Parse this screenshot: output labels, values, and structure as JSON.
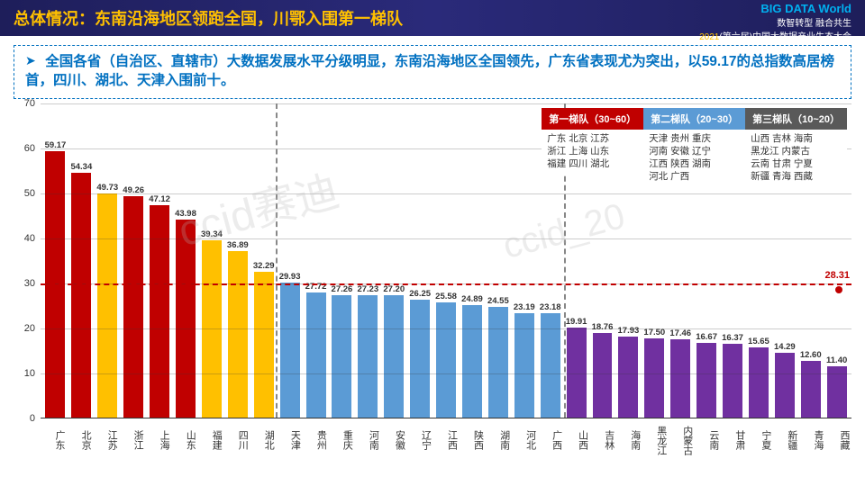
{
  "header": {
    "title": "总体情况：东南沿海地区领跑全国，川鄂入围第一梯队",
    "logo_main": "BIG DATA World",
    "logo_sub": "中国大数据产业生态大会",
    "slogan": "数智转型 融合共生",
    "event": "2021(第六届)中国大数据产业生态大会",
    "year": "2021"
  },
  "description": "全国各省（自治区、直辖市）大数据发展水平分级明显，东南沿海地区全国领先，广东省表现尤为突出，以59.17的总指数高居榜首，四川、湖北、天津入围前十。",
  "chart": {
    "type": "bar",
    "ylim": [
      0,
      70
    ],
    "ytick_step": 10,
    "ref_line": 30,
    "final_point": {
      "label": "28.31",
      "value": 28.31
    },
    "tiers": [
      {
        "name": "第一梯队（30~60）",
        "color": "#c00000",
        "items": [
          "广东 北京 江苏",
          "浙江 上海 山东",
          "福建 四川 湖北"
        ]
      },
      {
        "name": "第二梯队（20~30）",
        "color": "#5b9bd5",
        "items": [
          "天津 贵州 重庆",
          "河南 安徽 辽宁",
          "江西 陕西 湖南",
          "河北 广西"
        ]
      },
      {
        "name": "第三梯队（10~20）",
        "color": "#595959",
        "items": [
          "山西 吉林 海南",
          "黑龙江 内蒙古",
          "云南 甘肃 宁夏",
          "新疆 青海 西藏"
        ]
      }
    ],
    "tier_boundaries": [
      9,
      20
    ],
    "bars": [
      {
        "label": "广东",
        "value": 59.17,
        "color": "#c00000"
      },
      {
        "label": "北京",
        "value": 54.34,
        "color": "#c00000"
      },
      {
        "label": "江苏",
        "value": 49.73,
        "color": "#ffc000"
      },
      {
        "label": "浙江",
        "value": 49.26,
        "color": "#c00000"
      },
      {
        "label": "上海",
        "value": 47.12,
        "color": "#c00000"
      },
      {
        "label": "山东",
        "value": 43.98,
        "color": "#c00000"
      },
      {
        "label": "福建",
        "value": 39.34,
        "color": "#ffc000"
      },
      {
        "label": "四川",
        "value": 36.89,
        "color": "#ffc000"
      },
      {
        "label": "湖北",
        "value": 32.29,
        "color": "#ffc000"
      },
      {
        "label": "天津",
        "value": 29.93,
        "color": "#5b9bd5"
      },
      {
        "label": "贵州",
        "value": 27.72,
        "color": "#5b9bd5"
      },
      {
        "label": "重庆",
        "value": 27.26,
        "color": "#5b9bd5"
      },
      {
        "label": "河南",
        "value": 27.23,
        "color": "#5b9bd5"
      },
      {
        "label": "安徽",
        "value": 27.2,
        "color": "#5b9bd5"
      },
      {
        "label": "辽宁",
        "value": 26.25,
        "color": "#5b9bd5"
      },
      {
        "label": "江西",
        "value": 25.58,
        "color": "#5b9bd5"
      },
      {
        "label": "陕西",
        "value": 24.89,
        "color": "#5b9bd5"
      },
      {
        "label": "湖南",
        "value": 24.55,
        "color": "#5b9bd5"
      },
      {
        "label": "河北",
        "value": 23.19,
        "color": "#5b9bd5"
      },
      {
        "label": "广西",
        "value": 23.18,
        "color": "#5b9bd5"
      },
      {
        "label": "山西",
        "value": 19.91,
        "color": "#7030a0"
      },
      {
        "label": "吉林",
        "value": 18.76,
        "color": "#7030a0"
      },
      {
        "label": "海南",
        "value": 17.93,
        "color": "#7030a0"
      },
      {
        "label": "黑龙江",
        "value": 17.5,
        "color": "#7030a0"
      },
      {
        "label": "内蒙古",
        "value": 17.46,
        "color": "#7030a0"
      },
      {
        "label": "云南",
        "value": 16.67,
        "color": "#7030a0"
      },
      {
        "label": "甘肃",
        "value": 16.37,
        "color": "#7030a0"
      },
      {
        "label": "宁夏",
        "value": 15.65,
        "color": "#7030a0"
      },
      {
        "label": "新疆",
        "value": 14.29,
        "color": "#7030a0"
      },
      {
        "label": "青海",
        "value": 12.6,
        "color": "#7030a0"
      },
      {
        "label": "西藏",
        "value": 11.4,
        "color": "#7030a0"
      }
    ],
    "watermarks": [
      "ccid赛迪",
      "ccid_20"
    ]
  }
}
